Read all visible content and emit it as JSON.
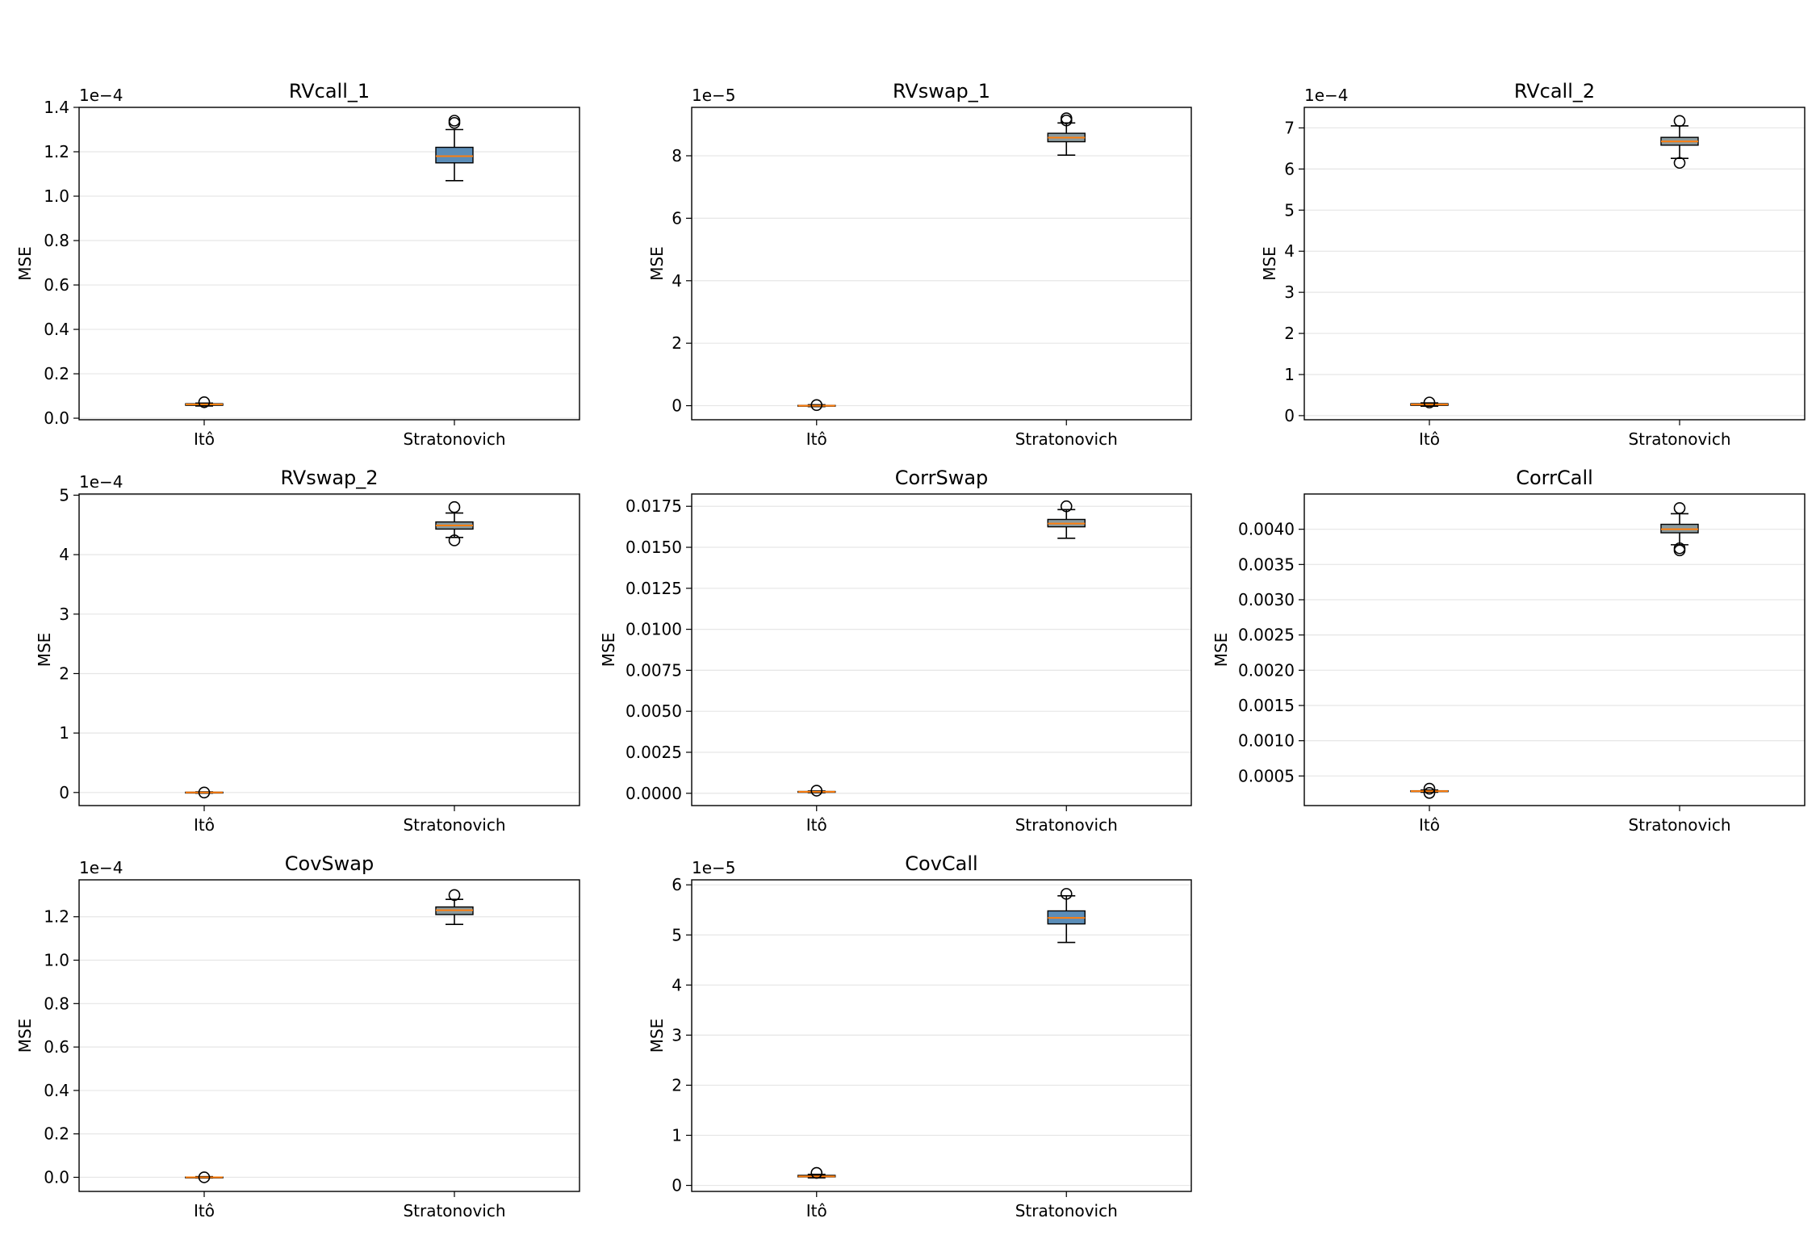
{
  "chart_data": [
    {
      "type": "box",
      "title": "RVcall_1",
      "ylabel": "MSE",
      "offset_text": "1e−4",
      "scale": 0.0001,
      "ylim": [
        -0.007,
        1.4
      ],
      "yticks": [
        0.0,
        0.2,
        0.4,
        0.6,
        0.8,
        1.0,
        1.2,
        1.4
      ],
      "ytick_labels": [
        "0.0",
        "0.2",
        "0.4",
        "0.6",
        "0.8",
        "1.0",
        "1.2",
        "1.4"
      ],
      "categories": [
        "Itô",
        "Stratonovich"
      ],
      "boxes": [
        {
          "whisker_low": 0.055,
          "q1": 0.058,
          "median": 0.062,
          "q3": 0.065,
          "whisker_high": 0.068,
          "outliers": [
            0.072
          ]
        },
        {
          "whisker_low": 1.07,
          "q1": 1.15,
          "median": 1.18,
          "q3": 1.22,
          "whisker_high": 1.3,
          "outliers": [
            1.33,
            1.34
          ]
        }
      ]
    },
    {
      "type": "box",
      "title": "RVswap_1",
      "ylabel": "MSE",
      "offset_text": "1e−5",
      "scale": 1e-05,
      "ylim": [
        -0.45,
        9.55
      ],
      "yticks": [
        0,
        2,
        4,
        6,
        8
      ],
      "ytick_labels": [
        "0",
        "2",
        "4",
        "6",
        "8"
      ],
      "categories": [
        "Itô",
        "Stratonovich"
      ],
      "boxes": [
        {
          "whisker_low": -0.03,
          "q1": -0.01,
          "median": 0.0,
          "q3": 0.01,
          "whisker_high": 0.03,
          "outliers": [
            0.02
          ]
        },
        {
          "whisker_low": 8.02,
          "q1": 8.45,
          "median": 8.58,
          "q3": 8.72,
          "whisker_high": 9.05,
          "outliers": [
            9.13,
            9.2
          ]
        }
      ]
    },
    {
      "type": "box",
      "title": "RVcall_2",
      "ylabel": "MSE",
      "offset_text": "1e−4",
      "scale": 0.0001,
      "ylim": [
        -0.1,
        7.5
      ],
      "yticks": [
        0,
        1,
        2,
        3,
        4,
        5,
        6,
        7
      ],
      "ytick_labels": [
        "0",
        "1",
        "2",
        "3",
        "4",
        "5",
        "6",
        "7"
      ],
      "categories": [
        "Itô",
        "Stratonovich"
      ],
      "boxes": [
        {
          "whisker_low": 0.23,
          "q1": 0.25,
          "median": 0.27,
          "q3": 0.29,
          "whisker_high": 0.31,
          "outliers": [
            0.32
          ]
        },
        {
          "whisker_low": 6.26,
          "q1": 6.58,
          "median": 6.67,
          "q3": 6.77,
          "whisker_high": 7.05,
          "outliers": [
            6.15,
            7.17
          ]
        }
      ]
    },
    {
      "type": "box",
      "title": "RVswap_2",
      "ylabel": "MSE",
      "offset_text": "1e−4",
      "scale": 0.0001,
      "ylim": [
        -0.22,
        5.02
      ],
      "yticks": [
        0,
        1,
        2,
        3,
        4,
        5
      ],
      "ytick_labels": [
        "0",
        "1",
        "2",
        "3",
        "4",
        "5"
      ],
      "categories": [
        "Itô",
        "Stratonovich"
      ],
      "boxes": [
        {
          "whisker_low": -0.01,
          "q1": -0.005,
          "median": 0.0,
          "q3": 0.005,
          "whisker_high": 0.01,
          "outliers": [
            0.0
          ]
        },
        {
          "whisker_low": 4.29,
          "q1": 4.43,
          "median": 4.49,
          "q3": 4.55,
          "whisker_high": 4.7,
          "outliers": [
            4.24,
            4.8
          ]
        }
      ]
    },
    {
      "type": "box",
      "title": "CorrSwap",
      "ylabel": "MSE",
      "offset_text": "",
      "scale": 1,
      "ylim": [
        -0.00075,
        0.01825
      ],
      "yticks": [
        0.0,
        0.0025,
        0.005,
        0.0075,
        0.01,
        0.0125,
        0.015,
        0.0175
      ],
      "ytick_labels": [
        "0.0000",
        "0.0025",
        "0.0050",
        "0.0075",
        "0.0100",
        "0.0125",
        "0.0150",
        "0.0175"
      ],
      "categories": [
        "Itô",
        "Stratonovich"
      ],
      "boxes": [
        {
          "whisker_low": 4e-05,
          "q1": 7e-05,
          "median": 9e-05,
          "q3": 0.00011,
          "whisker_high": 0.00014,
          "outliers": [
            0.00016
          ]
        },
        {
          "whisker_low": 0.01555,
          "q1": 0.01625,
          "median": 0.01645,
          "q3": 0.0167,
          "whisker_high": 0.0173,
          "outliers": [
            0.0175
          ]
        }
      ]
    },
    {
      "type": "box",
      "title": "CorrCall",
      "ylabel": "MSE",
      "offset_text": "",
      "scale": 1,
      "ylim": [
        8e-05,
        0.0045
      ],
      "yticks": [
        0.0005,
        0.001,
        0.0015,
        0.002,
        0.0025,
        0.003,
        0.0035,
        0.004
      ],
      "ytick_labels": [
        "0.0005",
        "0.0010",
        "0.0015",
        "0.0020",
        "0.0025",
        "0.0030",
        "0.0035",
        "0.0040"
      ],
      "categories": [
        "Itô",
        "Stratonovich"
      ],
      "boxes": [
        {
          "whisker_low": 0.00027,
          "q1": 0.000278,
          "median": 0.000285,
          "q3": 0.00029,
          "whisker_high": 0.0003,
          "outliers": [
            0.00026,
            0.00032
          ]
        },
        {
          "whisker_low": 0.00378,
          "q1": 0.00395,
          "median": 0.004,
          "q3": 0.00407,
          "whisker_high": 0.00422,
          "outliers": [
            0.0037,
            0.00373,
            0.0043
          ]
        }
      ]
    },
    {
      "type": "box",
      "title": "CovSwap",
      "ylabel": "MSE",
      "offset_text": "1e−4",
      "scale": 0.0001,
      "ylim": [
        -0.065,
        1.37
      ],
      "yticks": [
        0.0,
        0.2,
        0.4,
        0.6,
        0.8,
        1.0,
        1.2
      ],
      "ytick_labels": [
        "0.0",
        "0.2",
        "0.4",
        "0.6",
        "0.8",
        "1.0",
        "1.2"
      ],
      "categories": [
        "Itô",
        "Stratonovich"
      ],
      "boxes": [
        {
          "whisker_low": -0.003,
          "q1": -0.001,
          "median": 0.0,
          "q3": 0.001,
          "whisker_high": 0.003,
          "outliers": [
            0.0
          ]
        },
        {
          "whisker_low": 1.165,
          "q1": 1.21,
          "median": 1.23,
          "q3": 1.245,
          "whisker_high": 1.28,
          "outliers": [
            1.3
          ]
        }
      ]
    },
    {
      "type": "box",
      "title": "CovCall",
      "ylabel": "MSE",
      "offset_text": "1e−5",
      "scale": 1e-05,
      "ylim": [
        -0.12,
        6.1
      ],
      "yticks": [
        0,
        1,
        2,
        3,
        4,
        5,
        6
      ],
      "ytick_labels": [
        "0",
        "1",
        "2",
        "3",
        "4",
        "5",
        "6"
      ],
      "categories": [
        "Itô",
        "Stratonovich"
      ],
      "boxes": [
        {
          "whisker_low": 0.15,
          "q1": 0.17,
          "median": 0.18,
          "q3": 0.2,
          "whisker_high": 0.22,
          "outliers": [
            0.25
          ]
        },
        {
          "whisker_low": 4.85,
          "q1": 5.22,
          "median": 5.34,
          "q3": 5.48,
          "whisker_high": 5.78,
          "outliers": [
            5.82
          ]
        }
      ]
    }
  ]
}
